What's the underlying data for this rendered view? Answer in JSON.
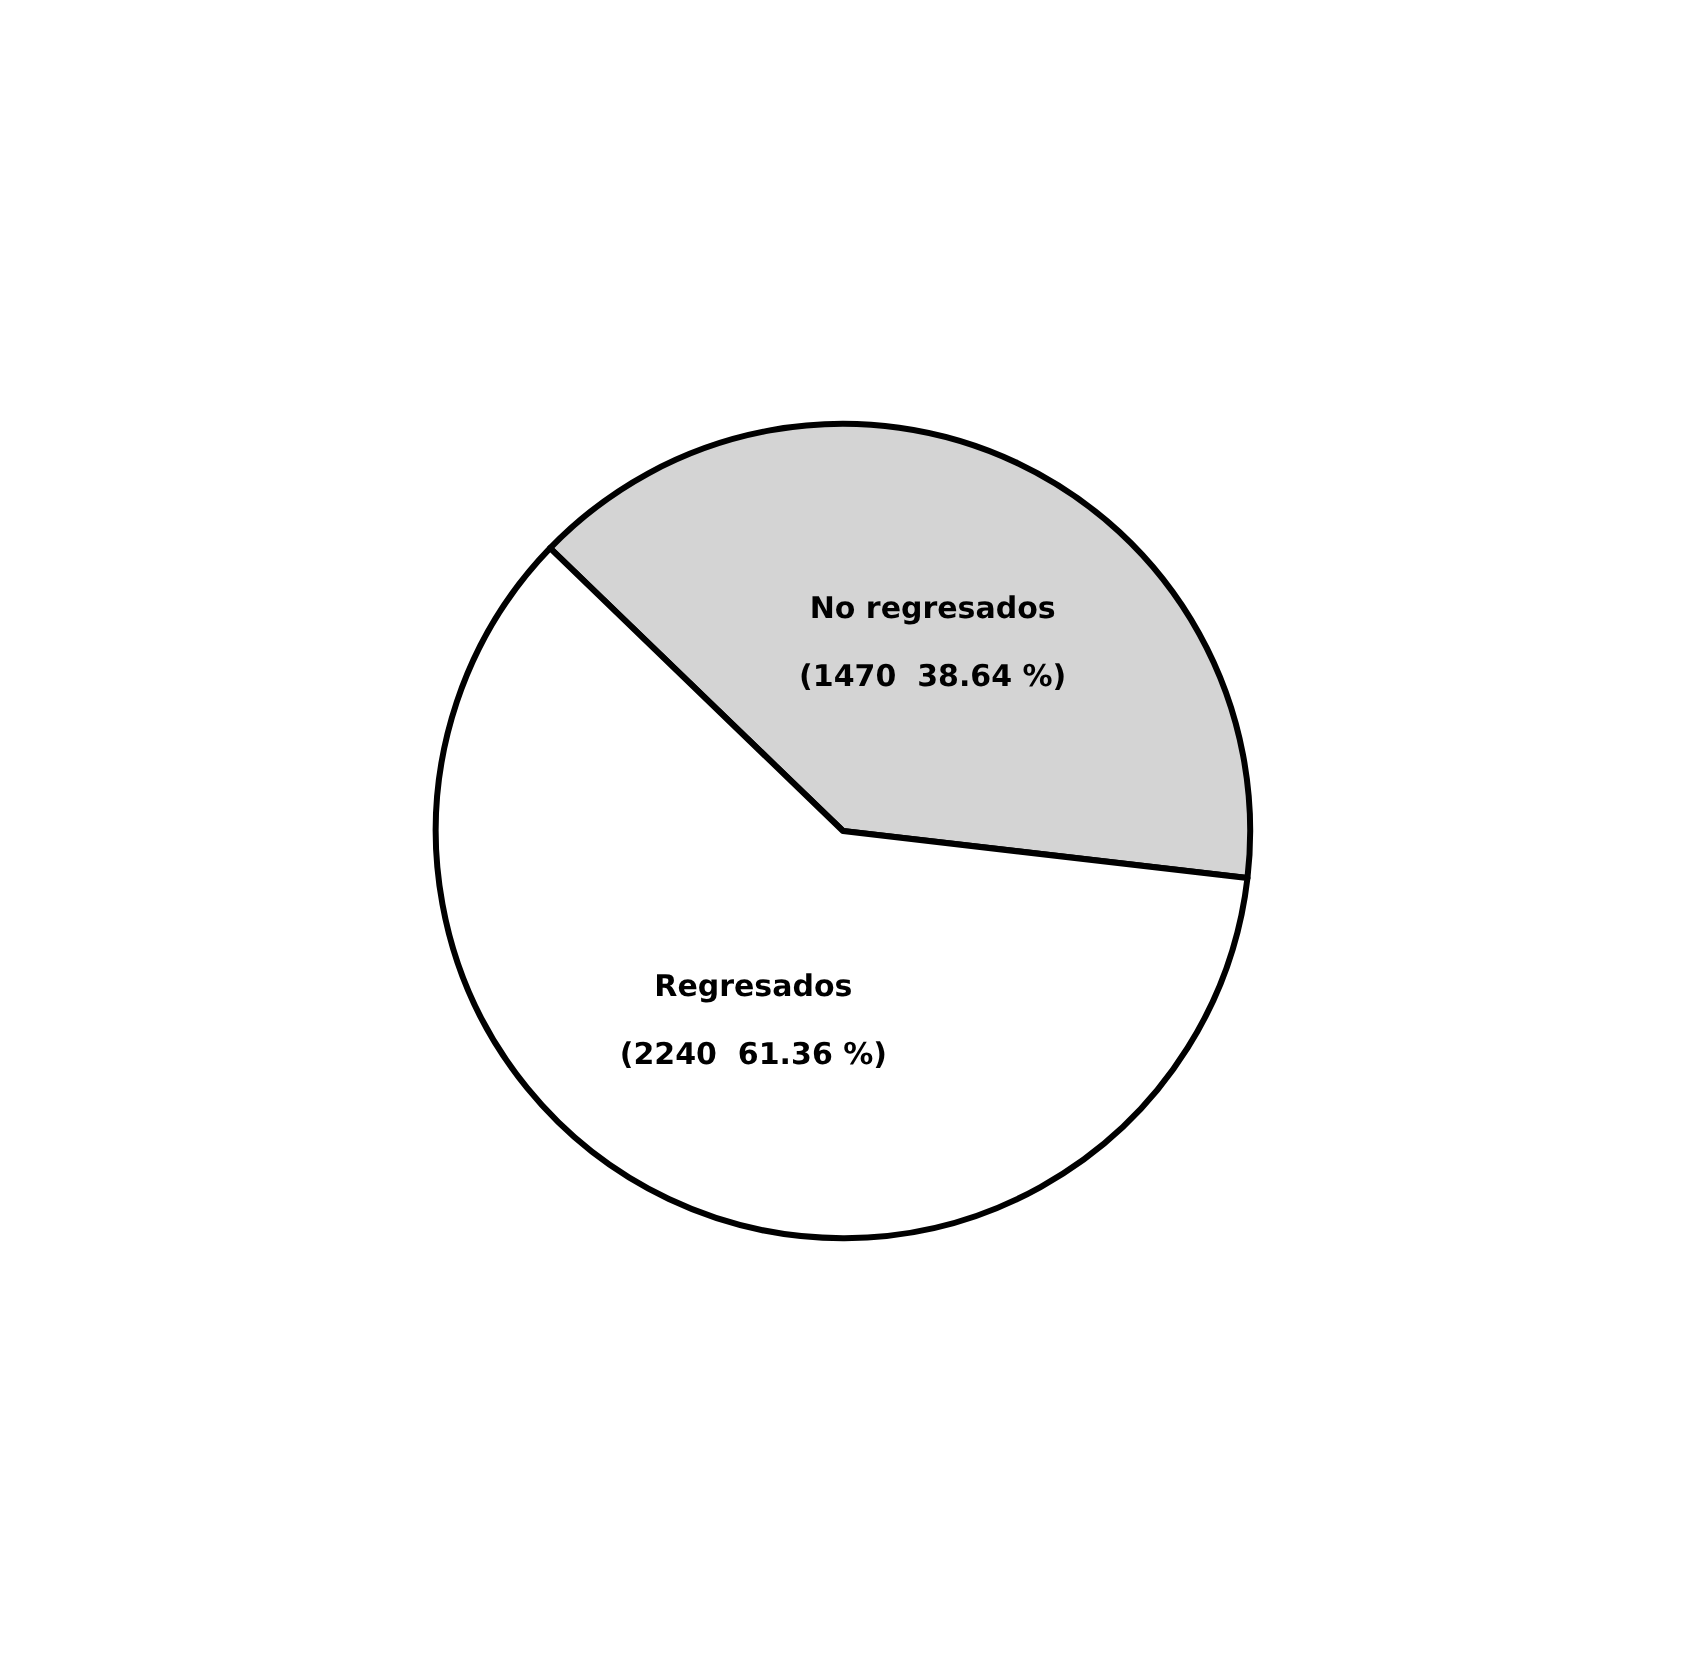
{
  "chart_data": {
    "type": "pie",
    "categories": [
      "No regresados",
      "Regresados"
    ],
    "values": [
      1470,
      2240
    ],
    "value_labels": [
      "(1470  38.64 %)",
      "(2240  61.36 %)"
    ],
    "colors": [
      "#d4d4d4",
      "#ffffff"
    ],
    "legend": false
  }
}
